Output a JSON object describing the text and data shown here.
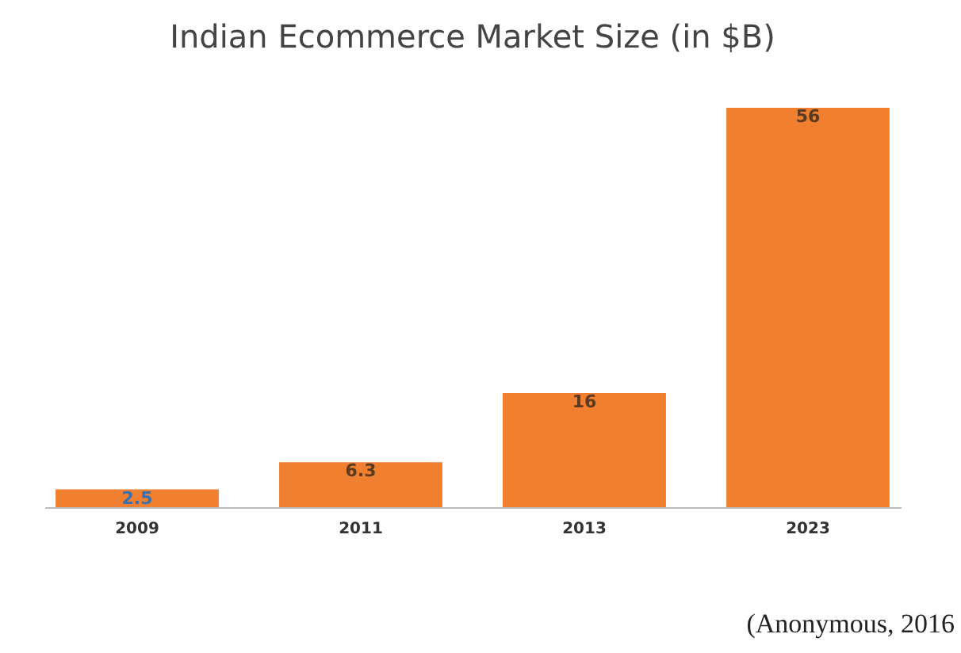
{
  "chart_data": {
    "type": "bar",
    "title": "Indian Ecommerce Market Size  (in $B)",
    "categories": [
      "2009",
      "2011",
      "2013",
      "2023"
    ],
    "values": [
      2.5,
      6.3,
      16,
      56
    ],
    "color": "#f07f2f",
    "data_labels": true,
    "annotations": [
      "(Anonymous, 2016"
    ]
  }
}
